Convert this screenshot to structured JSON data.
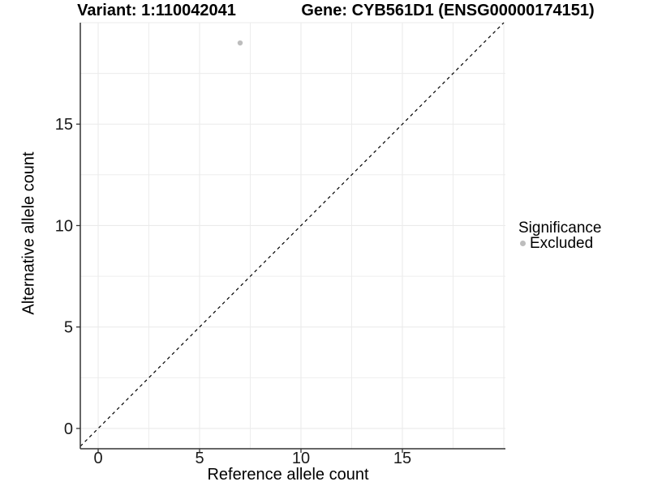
{
  "header": {
    "variant_title": "Variant: 1:110042041",
    "gene_title": "Gene: CYB561D1 (ENSG00000174151)"
  },
  "chart_data": {
    "type": "scatter",
    "title_left": "Variant: 1:110042041",
    "title_right": "Gene: CYB561D1 (ENSG00000174151)",
    "xlabel": "Reference allele count",
    "ylabel": "Alternative allele count",
    "xlim": [
      -0.88,
      20.08
    ],
    "ylim": [
      -1.0,
      20.0
    ],
    "x_ticks": [
      0,
      5,
      10,
      15
    ],
    "y_ticks": [
      0,
      5,
      10,
      15
    ],
    "grid_major": [
      0,
      5,
      10,
      15,
      20
    ],
    "grid_minor": [
      2.5,
      7.5,
      12.5,
      17.5
    ],
    "grid": true,
    "points": [
      {
        "x": 7,
        "y": 19,
        "series": "Excluded"
      }
    ],
    "reference_line": {
      "slope": 1,
      "intercept": 0,
      "style": "dashed",
      "color": "#000000"
    },
    "legend": {
      "title": "Significance",
      "position": "right",
      "items": [
        {
          "label": "Excluded",
          "color": "#bdbdbd",
          "marker": "circle"
        }
      ]
    },
    "colors": {
      "background": "#ffffff",
      "grid": "#ebebeb",
      "axis": "#333333",
      "tick_label": "#1a1a1a",
      "point": "#bdbdbd"
    }
  }
}
